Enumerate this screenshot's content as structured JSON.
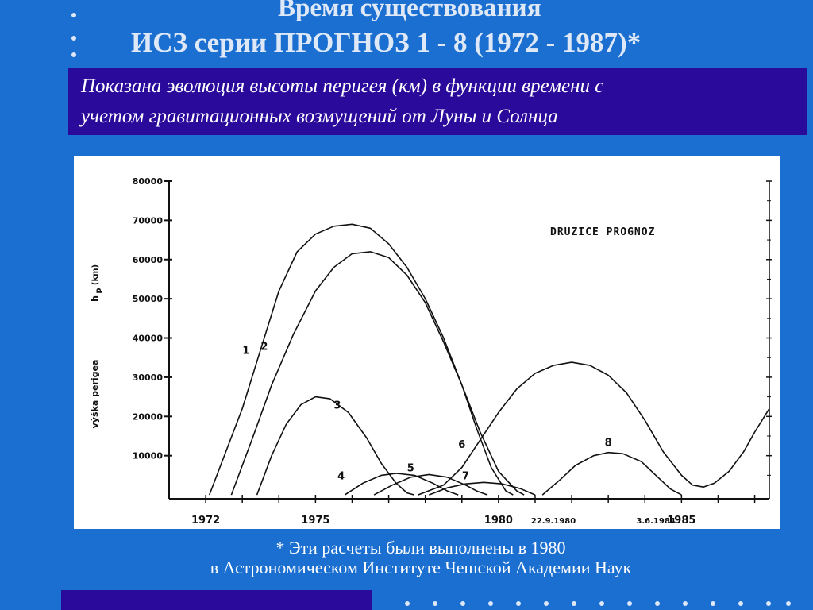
{
  "slide": {
    "title_line1": "Время  существования",
    "title_line2": "ИСЗ серии ПРОГНОЗ 1 - 8 (1972 - 1987)*",
    "description_line1": "Показана эволюция высоты перигея (км) в функции времени с",
    "description_line2": "учетом гравитационных возмущений от  Луны и Солнца",
    "footnote_line1": "* Эти расчеты были выполнены в 1980",
    "footnote_line2": "в  Астрономическом Институте Чешской Академии Наук"
  },
  "colors": {
    "background": "#1a6fd0",
    "box": "#2a0a9a",
    "chart_bg": "#ffffff",
    "ink": "#111111"
  },
  "chart_data": {
    "type": "line",
    "title": "DRUZICE  PROGNOZ",
    "ylabel": "výška perigea",
    "ylabel_symbol": "h",
    "ylabel_symbol_sub": "p",
    "ylabel_unit": "(km)",
    "xlim": [
      1971.0,
      1987.4
    ],
    "ylim": [
      -1000,
      80000
    ],
    "y_ticks": [
      10000,
      20000,
      30000,
      40000,
      50000,
      60000,
      70000,
      80000
    ],
    "y_tick_labels": [
      "10000",
      "20000",
      "30000",
      "40000",
      "50000",
      "60000",
      "70000",
      "80000"
    ],
    "x_ticks": [
      1972,
      1975,
      1980,
      1985
    ],
    "x_tick_labels": [
      "1972",
      "1975",
      "1980",
      "1985"
    ],
    "grid": false,
    "legend": "top-right",
    "annotations": [
      {
        "text": "22.9.1980",
        "x": 1981.5
      },
      {
        "text": "3.6.1984",
        "x": 1984.3
      }
    ],
    "series": [
      {
        "name": "1",
        "points": [
          [
            1972.1,
            0
          ],
          [
            1973.0,
            22000
          ],
          [
            1973.5,
            37000
          ],
          [
            1974.0,
            52000
          ],
          [
            1974.5,
            62000
          ],
          [
            1975.0,
            66500
          ],
          [
            1975.5,
            68500
          ],
          [
            1976.0,
            69000
          ],
          [
            1976.5,
            68000
          ],
          [
            1977.0,
            64000
          ],
          [
            1977.5,
            58000
          ],
          [
            1978.0,
            50000
          ],
          [
            1978.5,
            40000
          ],
          [
            1979.0,
            28000
          ],
          [
            1979.4,
            17000
          ],
          [
            1979.8,
            7000
          ],
          [
            1980.2,
            1000
          ],
          [
            1980.4,
            0
          ]
        ]
      },
      {
        "name": "2",
        "points": [
          [
            1972.7,
            0
          ],
          [
            1973.3,
            15000
          ],
          [
            1973.8,
            28000
          ],
          [
            1974.4,
            41000
          ],
          [
            1975.0,
            52000
          ],
          [
            1975.5,
            58000
          ],
          [
            1976.0,
            61500
          ],
          [
            1976.5,
            62000
          ],
          [
            1977.0,
            60500
          ],
          [
            1977.5,
            56000
          ],
          [
            1978.0,
            49000
          ],
          [
            1978.5,
            39000
          ],
          [
            1979.0,
            28000
          ],
          [
            1979.5,
            16000
          ],
          [
            1980.0,
            6000
          ],
          [
            1980.5,
            1000
          ],
          [
            1980.7,
            0
          ]
        ]
      },
      {
        "name": "3",
        "points": [
          [
            1973.4,
            0
          ],
          [
            1973.8,
            10000
          ],
          [
            1974.2,
            18000
          ],
          [
            1974.6,
            23000
          ],
          [
            1975.0,
            25000
          ],
          [
            1975.4,
            24500
          ],
          [
            1975.9,
            21000
          ],
          [
            1976.4,
            14500
          ],
          [
            1976.8,
            8000
          ],
          [
            1977.2,
            3000
          ],
          [
            1977.5,
            500
          ],
          [
            1977.7,
            0
          ]
        ]
      },
      {
        "name": "4",
        "points": [
          [
            1975.8,
            0
          ],
          [
            1976.3,
            3000
          ],
          [
            1976.8,
            5000
          ],
          [
            1977.2,
            5500
          ],
          [
            1977.7,
            5000
          ],
          [
            1978.2,
            3000
          ],
          [
            1978.6,
            1000
          ],
          [
            1978.9,
            0
          ]
        ]
      },
      {
        "name": "5",
        "points": [
          [
            1976.6,
            0
          ],
          [
            1977.1,
            2500
          ],
          [
            1977.6,
            4500
          ],
          [
            1978.1,
            5200
          ],
          [
            1978.6,
            4500
          ],
          [
            1979.1,
            2500
          ],
          [
            1979.4,
            1000
          ],
          [
            1979.7,
            0
          ]
        ]
      },
      {
        "name": "7",
        "points": [
          [
            1978.1,
            0
          ],
          [
            1978.6,
            1800
          ],
          [
            1979.1,
            2800
          ],
          [
            1979.6,
            3200
          ],
          [
            1980.1,
            2800
          ],
          [
            1980.6,
            1600
          ],
          [
            1981.0,
            0
          ]
        ]
      },
      {
        "name": "6",
        "points": [
          [
            1977.8,
            0
          ],
          [
            1978.5,
            2500
          ],
          [
            1979.0,
            7000
          ],
          [
            1979.5,
            14000
          ],
          [
            1980.0,
            21000
          ],
          [
            1980.5,
            27000
          ],
          [
            1981.0,
            31000
          ],
          [
            1981.5,
            33000
          ],
          [
            1982.0,
            33800
          ],
          [
            1982.5,
            33000
          ],
          [
            1983.0,
            30500
          ],
          [
            1983.5,
            26000
          ],
          [
            1984.0,
            19000
          ],
          [
            1984.5,
            11000
          ],
          [
            1985.0,
            5000
          ],
          [
            1985.3,
            2500
          ],
          [
            1985.6,
            2000
          ],
          [
            1985.9,
            3000
          ],
          [
            1986.3,
            6000
          ],
          [
            1986.7,
            11000
          ],
          [
            1987.0,
            16000
          ],
          [
            1987.3,
            20500
          ],
          [
            1987.4,
            22000
          ]
        ]
      },
      {
        "name": "8",
        "points": [
          [
            1981.2,
            0
          ],
          [
            1981.7,
            4000
          ],
          [
            1982.1,
            7500
          ],
          [
            1982.6,
            10000
          ],
          [
            1983.0,
            10800
          ],
          [
            1983.4,
            10500
          ],
          [
            1983.9,
            8500
          ],
          [
            1984.3,
            5000
          ],
          [
            1984.7,
            1500
          ],
          [
            1985.0,
            0
          ]
        ]
      }
    ],
    "series_label_positions": [
      {
        "name": "1",
        "x": 1973.1,
        "y": 36000
      },
      {
        "name": "2",
        "x": 1973.6,
        "y": 37000
      },
      {
        "name": "3",
        "x": 1975.6,
        "y": 22000
      },
      {
        "name": "4",
        "x": 1975.7,
        "y": 4000
      },
      {
        "name": "5",
        "x": 1977.6,
        "y": 6000
      },
      {
        "name": "6",
        "x": 1979.0,
        "y": 12000
      },
      {
        "name": "7",
        "x": 1979.1,
        "y": 4000
      },
      {
        "name": "8",
        "x": 1983.0,
        "y": 12500
      }
    ]
  }
}
